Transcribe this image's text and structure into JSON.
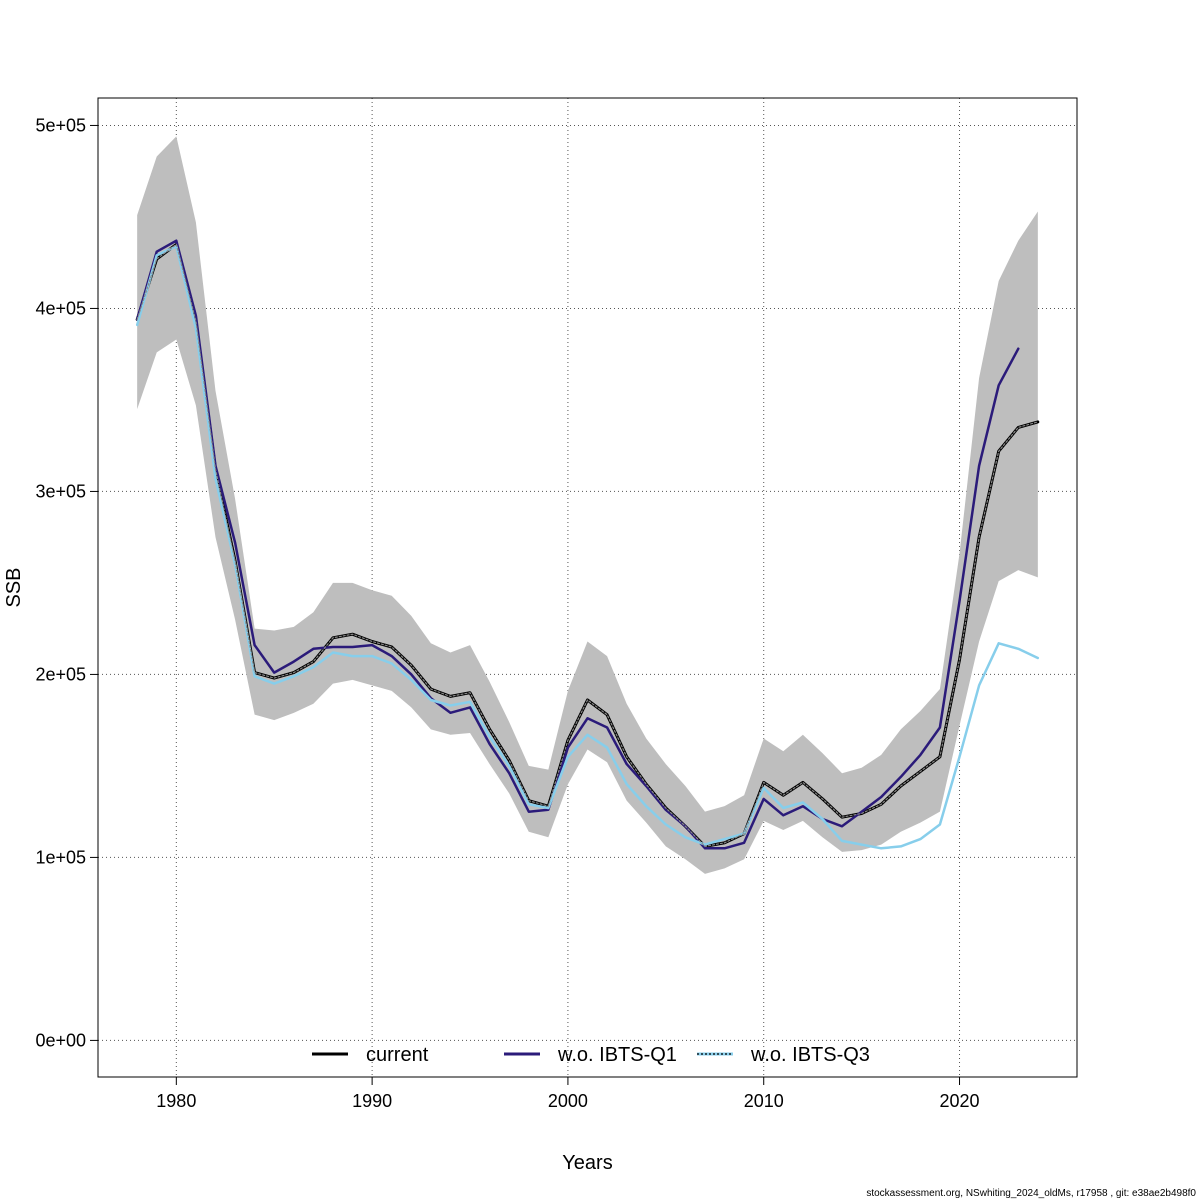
{
  "chart_data": {
    "type": "line",
    "xlabel": "Years",
    "ylabel": "SSB",
    "xlim": [
      1976,
      2026
    ],
    "ylim": [
      -20000,
      515000
    ],
    "x_ticks": [
      1980,
      1990,
      2000,
      2010,
      2020
    ],
    "x_tick_labels": [
      "1980",
      "1990",
      "2000",
      "2010",
      "2020"
    ],
    "y_ticks": [
      0,
      100000,
      200000,
      300000,
      400000,
      500000
    ],
    "y_tick_labels": [
      "0e+00",
      "1e+05",
      "2e+05",
      "3e+05",
      "4e+05",
      "5e+05"
    ],
    "grid": true,
    "legend_position": "bottom-center",
    "footer": "stockassessment.org, NSwhiting_2024_oldMs, r17958 , git: e38ae2b498f0",
    "confidence_band": {
      "x": [
        1978,
        1979,
        1980,
        1981,
        1982,
        1983,
        1984,
        1985,
        1986,
        1987,
        1988,
        1989,
        1990,
        1991,
        1992,
        1993,
        1994,
        1995,
        1996,
        1997,
        1998,
        1999,
        2000,
        2001,
        2002,
        2003,
        2004,
        2005,
        2006,
        2007,
        2008,
        2009,
        2010,
        2011,
        2012,
        2013,
        2014,
        2015,
        2016,
        2017,
        2018,
        2019,
        2020,
        2021,
        2022,
        2023,
        2024
      ],
      "lower": [
        345000,
        376000,
        383000,
        347000,
        275000,
        230000,
        178000,
        175000,
        179000,
        184000,
        195000,
        197000,
        194000,
        191000,
        182000,
        170000,
        167000,
        168000,
        151000,
        135000,
        114000,
        111000,
        140000,
        159000,
        152000,
        131000,
        119000,
        106000,
        99000,
        91000,
        94000,
        99000,
        120000,
        115000,
        120000,
        111000,
        103000,
        104000,
        107000,
        114000,
        119000,
        125000,
        172000,
        218000,
        251000,
        257000,
        253000
      ],
      "upper": [
        451000,
        483000,
        494000,
        447000,
        355000,
        296000,
        225000,
        224000,
        226000,
        234000,
        250000,
        250000,
        246000,
        243000,
        232000,
        217000,
        212000,
        216000,
        196000,
        174000,
        150000,
        148000,
        191000,
        218000,
        210000,
        184000,
        165000,
        151000,
        139000,
        125000,
        128000,
        134000,
        165000,
        158000,
        167000,
        157000,
        146000,
        149000,
        156000,
        170000,
        180000,
        192000,
        266000,
        362000,
        415000,
        437000,
        453000
      ]
    },
    "series": [
      {
        "name": "current",
        "color": "#000000",
        "dash": "solid",
        "x": [
          1978,
          1979,
          1980,
          1981,
          1982,
          1983,
          1984,
          1985,
          1986,
          1987,
          1988,
          1989,
          1990,
          1991,
          1992,
          1993,
          1994,
          1995,
          1996,
          1997,
          1998,
          1999,
          2000,
          2001,
          2002,
          2003,
          2004,
          2005,
          2006,
          2007,
          2008,
          2009,
          2010,
          2011,
          2012,
          2013,
          2014,
          2015,
          2016,
          2017,
          2018,
          2019,
          2020,
          2021,
          2022,
          2023,
          2024
        ],
        "values": [
          394000,
          427000,
          435000,
          393000,
          312000,
          262000,
          201000,
          198000,
          201000,
          207000,
          220000,
          222000,
          218000,
          215000,
          205000,
          192000,
          188000,
          190000,
          170000,
          153000,
          131000,
          128000,
          164000,
          186000,
          178000,
          155000,
          140000,
          127000,
          117000,
          106000,
          108000,
          113000,
          141000,
          134000,
          141000,
          132000,
          122000,
          124000,
          129000,
          139000,
          147000,
          155000,
          208000,
          275000,
          322000,
          335000,
          338000
        ]
      },
      {
        "name": "w.o. IBTS-Q1",
        "color": "#2b1b7a",
        "dash": "solid",
        "x": [
          1978,
          1979,
          1980,
          1981,
          1982,
          1983,
          1984,
          1985,
          1986,
          1987,
          1988,
          1989,
          1990,
          1991,
          1992,
          1993,
          1994,
          1995,
          1996,
          1997,
          1998,
          1999,
          2000,
          2001,
          2002,
          2003,
          2004,
          2005,
          2006,
          2007,
          2008,
          2009,
          2010,
          2011,
          2012,
          2013,
          2014,
          2015,
          2016,
          2017,
          2018,
          2019,
          2020,
          2021,
          2022,
          2023
        ],
        "values": [
          394000,
          431000,
          437000,
          396000,
          314000,
          272000,
          216000,
          201000,
          207000,
          214000,
          215000,
          215000,
          216000,
          210000,
          200000,
          187000,
          179000,
          182000,
          162000,
          146000,
          125000,
          126000,
          160000,
          176000,
          171000,
          151000,
          139000,
          126000,
          117000,
          105000,
          105000,
          108000,
          132000,
          123000,
          128000,
          121000,
          117000,
          125000,
          133000,
          144000,
          156000,
          171000,
          240000,
          314000,
          358000,
          378000
        ]
      },
      {
        "name": "w.o. IBTS-Q3",
        "color": "#87ceeb",
        "dash": "solid",
        "x": [
          1978,
          1979,
          1980,
          1981,
          1982,
          1983,
          1984,
          1985,
          1986,
          1987,
          1988,
          1989,
          1990,
          1991,
          1992,
          1993,
          1994,
          1995,
          1996,
          1997,
          1998,
          1999,
          2000,
          2001,
          2002,
          2003,
          2004,
          2005,
          2006,
          2007,
          2008,
          2009,
          2010,
          2011,
          2012,
          2013,
          2014,
          2015,
          2016,
          2017,
          2018,
          2019,
          2020,
          2021,
          2022,
          2023,
          2024
        ],
        "values": [
          391000,
          429000,
          434000,
          389000,
          307000,
          260000,
          199000,
          195000,
          199000,
          204000,
          212000,
          210000,
          210000,
          206000,
          197000,
          186000,
          183000,
          185000,
          166000,
          150000,
          129000,
          127000,
          155000,
          167000,
          160000,
          140000,
          128000,
          118000,
          111000,
          107000,
          110000,
          113000,
          138000,
          127000,
          130000,
          121000,
          109000,
          107000,
          105000,
          106000,
          110000,
          118000,
          155000,
          194000,
          217000,
          214000,
          209000
        ]
      }
    ],
    "legend": [
      {
        "label": "current",
        "color": "#000000",
        "dash": "solid"
      },
      {
        "label": "w.o. IBTS-Q1",
        "color": "#2b1b7a",
        "dash": "solid"
      },
      {
        "label": "w.o. IBTS-Q3",
        "color": "#87ceeb",
        "dash": "solid"
      }
    ]
  }
}
